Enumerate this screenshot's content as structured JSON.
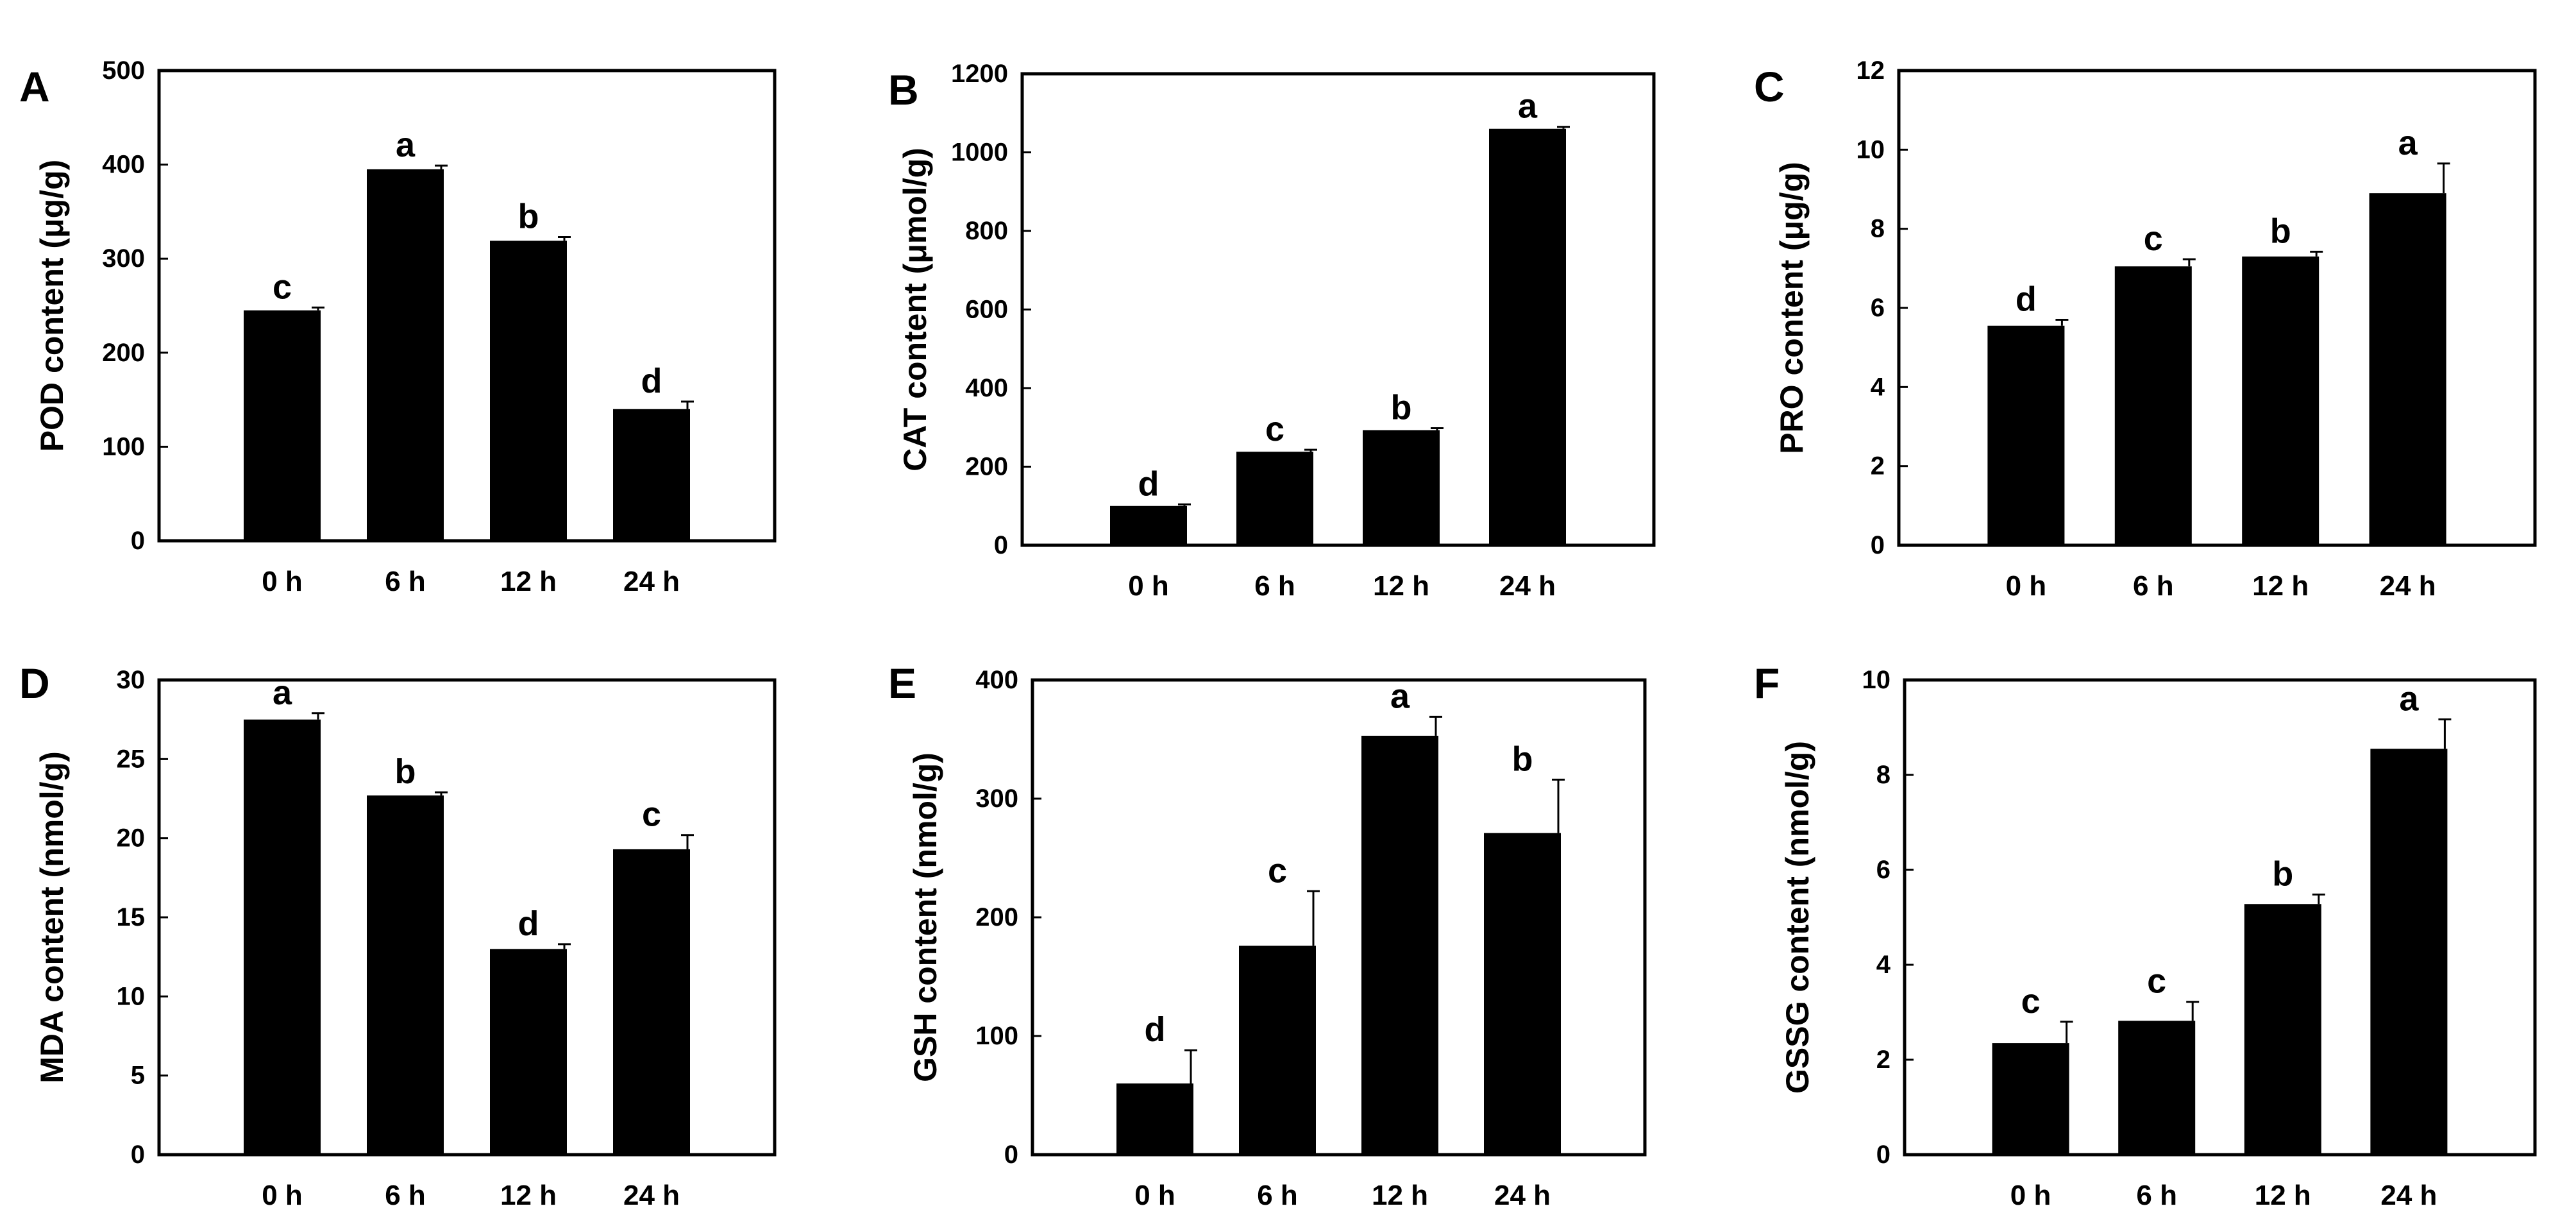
{
  "figure": {
    "background": "#ffffff",
    "bar_color": "#000000"
  },
  "chart_data": [
    {
      "panel": "A",
      "type": "bar",
      "categories": [
        "0 h",
        "6 h",
        "12 h",
        "24 h"
      ],
      "values": [
        245,
        395,
        319,
        140
      ],
      "errors": [
        3,
        4,
        4,
        8
      ],
      "significance": [
        "c",
        "a",
        "b",
        "d"
      ],
      "title": "",
      "xlabel": "",
      "ylabel": "POD content (μg/g)",
      "ylim": [
        0,
        500
      ],
      "yticks": [
        "0",
        "100",
        "200",
        "300",
        "400",
        "500"
      ],
      "grid": false
    },
    {
      "panel": "B",
      "type": "bar",
      "categories": [
        "0 h",
        "6 h",
        "12 h",
        "24 h"
      ],
      "values": [
        100,
        238,
        293,
        1060
      ],
      "errors": [
        4,
        5,
        5,
        5
      ],
      "significance": [
        "d",
        "c",
        "b",
        "a"
      ],
      "title": "",
      "xlabel": "",
      "ylabel": "CAT content (μmol/g)",
      "ylim": [
        0,
        1200
      ],
      "yticks": [
        "0",
        "200",
        "400",
        "600",
        "800",
        "1000",
        "1200"
      ],
      "grid": false
    },
    {
      "panel": "C",
      "type": "bar",
      "categories": [
        "0 h",
        "6 h",
        "12 h",
        "24 h"
      ],
      "values": [
        5.55,
        7.05,
        7.3,
        8.9
      ],
      "errors": [
        0.15,
        0.18,
        0.12,
        0.75
      ],
      "significance": [
        "d",
        "c",
        "b",
        "a"
      ],
      "title": "",
      "xlabel": "",
      "ylabel": "PRO content (μg/g)",
      "ylim": [
        0,
        12
      ],
      "yticks": [
        "0",
        "2",
        "4",
        "6",
        "8",
        "10",
        "12"
      ],
      "grid": false
    },
    {
      "panel": "D",
      "type": "bar",
      "categories": [
        "0 h",
        "6 h",
        "12 h",
        "24 h"
      ],
      "values": [
        27.5,
        22.7,
        13.0,
        19.3
      ],
      "errors": [
        0.4,
        0.2,
        0.3,
        0.9
      ],
      "significance": [
        "a",
        "b",
        "d",
        "c"
      ],
      "title": "",
      "xlabel": "",
      "ylabel": "MDA content (nmol/g)",
      "ylim": [
        0,
        30
      ],
      "yticks": [
        "0",
        "5",
        "10",
        "15",
        "20",
        "25",
        "30"
      ],
      "grid": false
    },
    {
      "panel": "E",
      "type": "bar",
      "categories": [
        "0 h",
        "6 h",
        "12 h",
        "24 h"
      ],
      "values": [
        60,
        176,
        353,
        271
      ],
      "errors": [
        28,
        46,
        16,
        45
      ],
      "significance": [
        "d",
        "c",
        "a",
        "b"
      ],
      "title": "",
      "xlabel": "",
      "ylabel": "GSH content (nmol/g)",
      "ylim": [
        0,
        400
      ],
      "yticks": [
        "0",
        "100",
        "200",
        "300",
        "400"
      ],
      "grid": false
    },
    {
      "panel": "F",
      "type": "bar",
      "categories": [
        "0 h",
        "6 h",
        "12 h",
        "24 h"
      ],
      "values": [
        2.35,
        2.82,
        5.28,
        8.55
      ],
      "errors": [
        0.45,
        0.4,
        0.2,
        0.62
      ],
      "significance": [
        "c",
        "c",
        "b",
        "a"
      ],
      "title": "",
      "xlabel": "",
      "ylabel": "GSSG content (nmol/g)",
      "ylim": [
        0,
        10
      ],
      "yticks": [
        "0",
        "2",
        "4",
        "6",
        "8",
        "10"
      ],
      "grid": false
    }
  ]
}
